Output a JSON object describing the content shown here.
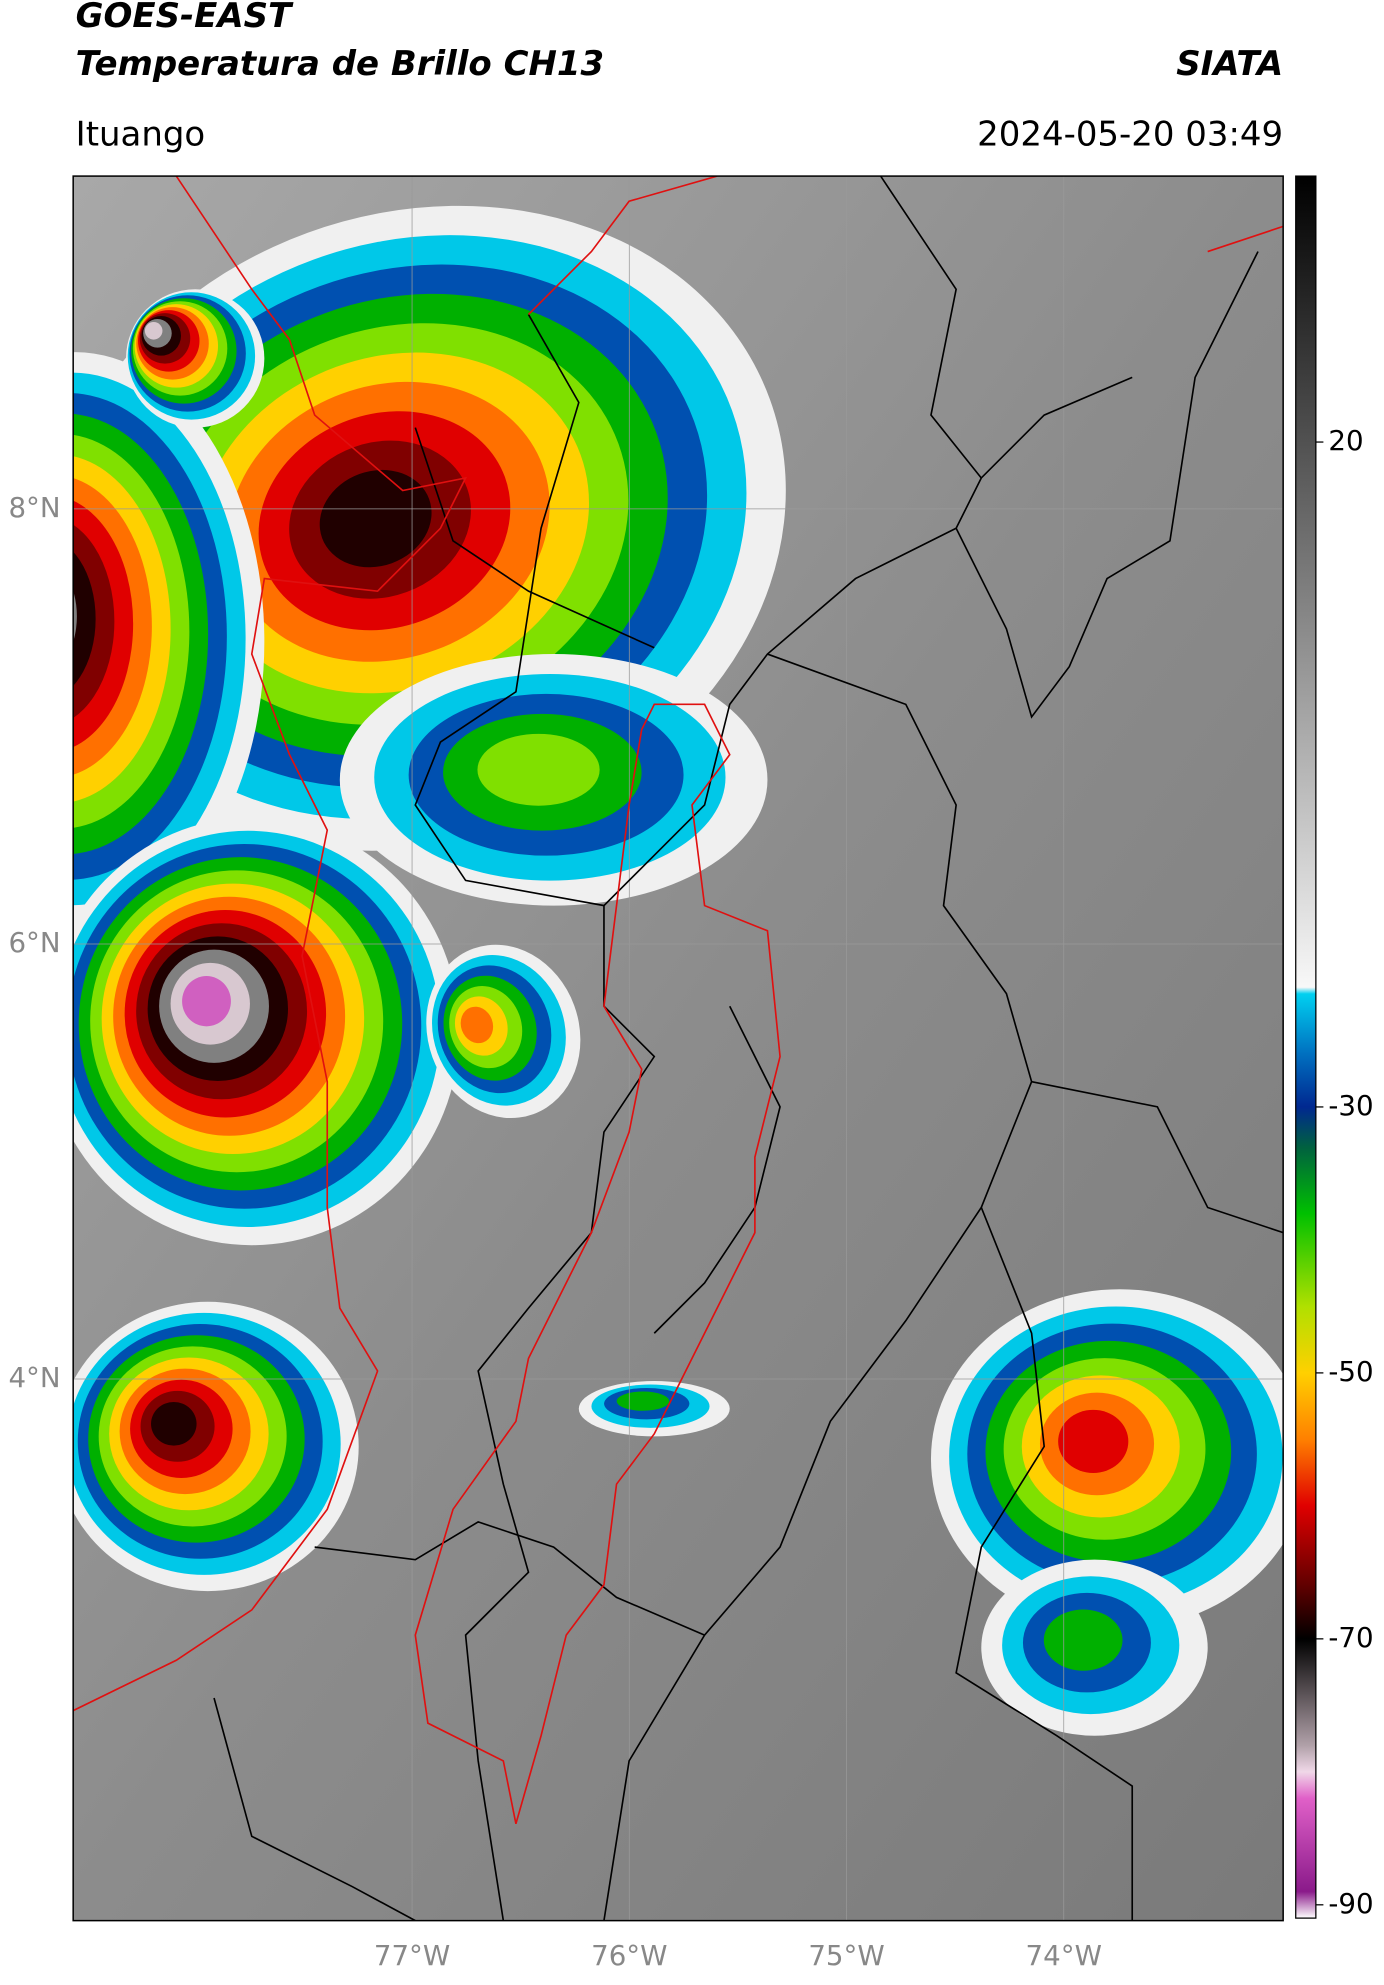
{
  "header": {
    "satellite": "GOES-EAST",
    "product": "Temperatura de Brillo CH13",
    "brand": "SIATA",
    "region": "Ituango",
    "datetime": "2024-05-20 03:49"
  },
  "map": {
    "xlim": [
      -78.56,
      -72.99
    ],
    "ylim": [
      1.51,
      9.53
    ],
    "xticks": [
      {
        "value": -77,
        "label": "77°W"
      },
      {
        "value": -76,
        "label": "76°W"
      },
      {
        "value": -75,
        "label": "75°W"
      },
      {
        "value": -74,
        "label": "74°W"
      }
    ],
    "yticks": [
      {
        "value": 8,
        "label": "8°N"
      },
      {
        "value": 6,
        "label": "6°N"
      },
      {
        "value": 4,
        "label": "4°N"
      }
    ],
    "grid": true
  },
  "colorbar": {
    "lim": [
      -91,
      40
    ],
    "ticks": [
      20,
      -30,
      -50,
      -70,
      -90
    ],
    "stops": [
      {
        "value": -91,
        "color": "#ffffff"
      },
      {
        "value": -89,
        "color": "#8a1a8a"
      },
      {
        "value": -82,
        "color": "#e060c8"
      },
      {
        "value": -80,
        "color": "#f0d8e8"
      },
      {
        "value": -78,
        "color": "#b0a0a8"
      },
      {
        "value": -70,
        "color": "#000000"
      },
      {
        "value": -66,
        "color": "#600000"
      },
      {
        "value": -60,
        "color": "#e00000"
      },
      {
        "value": -55,
        "color": "#ff8000"
      },
      {
        "value": -50,
        "color": "#ffd000"
      },
      {
        "value": -45,
        "color": "#b0e000"
      },
      {
        "value": -38,
        "color": "#00c000"
      },
      {
        "value": -33,
        "color": "#006040"
      },
      {
        "value": -30,
        "color": "#002890"
      },
      {
        "value": -26,
        "color": "#0070c0"
      },
      {
        "value": -21.5,
        "color": "#00d0f0"
      },
      {
        "value": -21,
        "color": "#f8f8f8"
      },
      {
        "value": 40,
        "color": "#000000"
      }
    ]
  }
}
